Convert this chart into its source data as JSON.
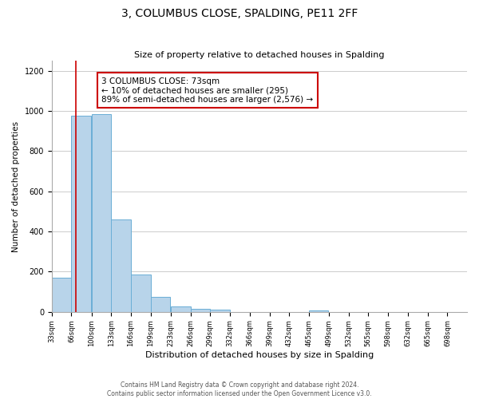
{
  "title": "3, COLUMBUS CLOSE, SPALDING, PE11 2FF",
  "subtitle": "Size of property relative to detached houses in Spalding",
  "xlabel": "Distribution of detached houses by size in Spalding",
  "ylabel": "Number of detached properties",
  "bar_edges": [
    33,
    66,
    100,
    133,
    166,
    199,
    233,
    266,
    299,
    332,
    366,
    399,
    432,
    465,
    499,
    532,
    565,
    598,
    632,
    665,
    698
  ],
  "bar_values": [
    170,
    975,
    985,
    460,
    185,
    75,
    25,
    15,
    10,
    0,
    0,
    0,
    0,
    8,
    0,
    0,
    0,
    0,
    0,
    0
  ],
  "bar_color": "#b8d4ea",
  "bar_edge_color": "#6aaed6",
  "property_line_x": 73,
  "property_line_color": "#cc0000",
  "annotation_line1": "3 COLUMBUS CLOSE: 73sqm",
  "annotation_line2": "← 10% of detached houses are smaller (295)",
  "annotation_line3": "89% of semi-detached houses are larger (2,576) →",
  "annotation_box_facecolor": "#ffffff",
  "annotation_box_edgecolor": "#cc0000",
  "ylim": [
    0,
    1250
  ],
  "yticks": [
    0,
    200,
    400,
    600,
    800,
    1000,
    1200
  ],
  "tick_labels": [
    "33sqm",
    "66sqm",
    "100sqm",
    "133sqm",
    "166sqm",
    "199sqm",
    "233sqm",
    "266sqm",
    "299sqm",
    "332sqm",
    "366sqm",
    "399sqm",
    "432sqm",
    "465sqm",
    "499sqm",
    "532sqm",
    "565sqm",
    "598sqm",
    "632sqm",
    "665sqm",
    "698sqm"
  ],
  "footer_line1": "Contains HM Land Registry data © Crown copyright and database right 2024.",
  "footer_line2": "Contains public sector information licensed under the Open Government Licence v3.0.",
  "background_color": "#ffffff",
  "grid_color": "#cccccc",
  "title_fontsize": 10,
  "subtitle_fontsize": 8,
  "ylabel_fontsize": 7.5,
  "xlabel_fontsize": 8,
  "tick_fontsize": 6,
  "annotation_fontsize": 7.5,
  "footer_fontsize": 5.5
}
